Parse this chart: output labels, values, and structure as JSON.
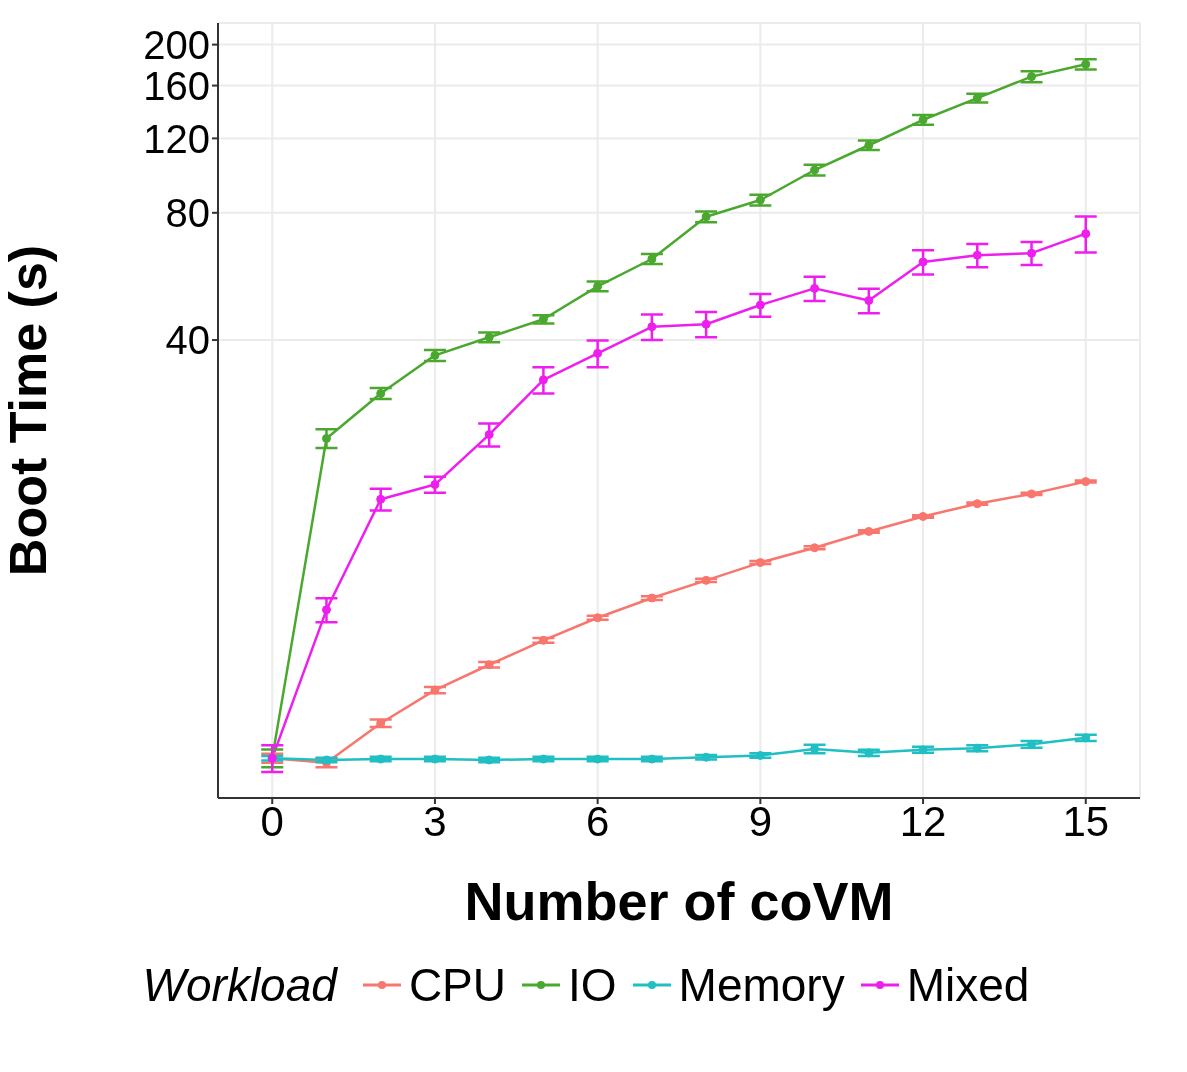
{
  "chart_data": {
    "type": "line",
    "xlabel": "Number of coVM",
    "ylabel": "Boot Time (s)",
    "legend_title": "Workload",
    "x": [
      0,
      1,
      2,
      3,
      4,
      5,
      6,
      7,
      8,
      9,
      10,
      11,
      12,
      13,
      14,
      15
    ],
    "series": [
      {
        "name": "CPU",
        "color": "#f8766d",
        "values": [
          4.1,
          4.0,
          4.96,
          5.94,
          6.82,
          7.79,
          8.81,
          9.81,
          10.8,
          11.9,
          12.9,
          14.1,
          15.3,
          16.4,
          17.3,
          18.5
        ],
        "errors": [
          0.1,
          0.1,
          0.1,
          0.1,
          0.1,
          0.1,
          0.1,
          0.1,
          0.1,
          0.1,
          0.1,
          0.1,
          0.1,
          0.1,
          0.1,
          0.1
        ]
      },
      {
        "name": "IO",
        "color": "#4aa82e",
        "values": [
          4.1,
          23.4,
          29.9,
          36.8,
          40.6,
          44.8,
          53.6,
          62.2,
          78.3,
          85.8,
          101,
          115.6,
          132.8,
          149.5,
          168,
          179.7
        ],
        "errors": [
          0.2,
          1.2,
          0.9,
          1.1,
          1.1,
          1,
          1.4,
          1.7,
          2.3,
          2.5,
          3,
          3,
          3.5,
          3.5,
          5,
          5
        ]
      },
      {
        "name": "Memory",
        "color": "#1fbfc4",
        "values": [
          4.1,
          4.06,
          4.08,
          4.08,
          4.06,
          4.08,
          4.08,
          4.08,
          4.12,
          4.16,
          4.31,
          4.22,
          4.29,
          4.33,
          4.42,
          4.58
        ],
        "errors": [
          0.05,
          0.05,
          0.05,
          0.05,
          0.05,
          0.05,
          0.05,
          0.05,
          0.05,
          0.05,
          0.1,
          0.07,
          0.07,
          0.07,
          0.08,
          0.08
        ]
      },
      {
        "name": "Mixed",
        "color": "#ee1fee",
        "values": [
          4.1,
          9.2,
          16.8,
          18.2,
          23.9,
          32.2,
          37.2,
          43.0,
          43.6,
          48.4,
          53.0,
          49.6,
          61.2,
          63.5,
          64.2,
          71.4
        ],
        "errors": [
          0.3,
          0.6,
          1,
          0.8,
          1.5,
          2.3,
          2.7,
          3,
          3,
          3,
          3.5,
          3.3,
          4,
          4,
          4,
          7
        ]
      }
    ],
    "log": "y",
    "xlim": [
      -1,
      16
    ],
    "xticks": [
      0,
      3,
      6,
      9,
      12,
      15
    ],
    "ylim": [
      3.3,
      225
    ],
    "yticks": [
      40,
      80,
      120,
      160,
      200
    ],
    "grid": true,
    "legend": "bottom",
    "marker": "circle",
    "line_style": "solid"
  }
}
